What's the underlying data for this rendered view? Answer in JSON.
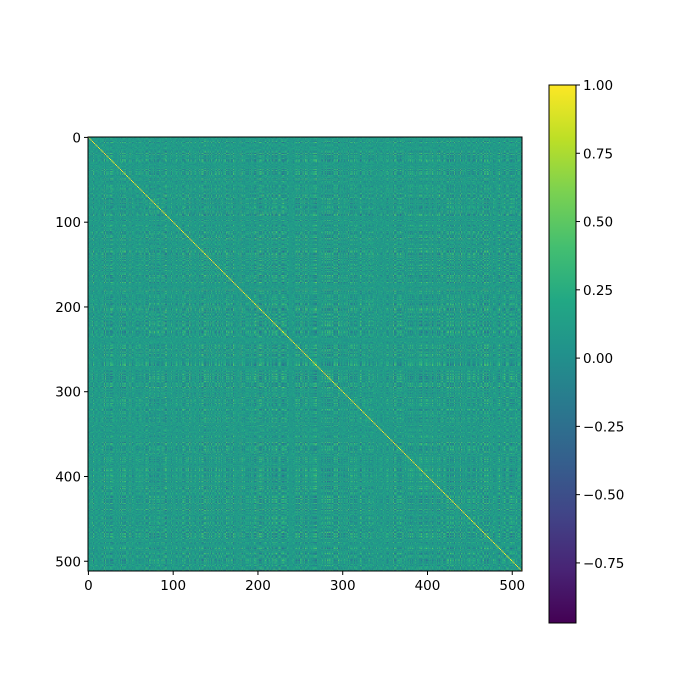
{
  "chart_data": {
    "type": "heatmap",
    "title": "",
    "xlabel": "",
    "ylabel": "",
    "matrix_size": [
      512,
      512
    ],
    "x_ticks": [
      0,
      100,
      200,
      300,
      400,
      500
    ],
    "y_ticks": [
      0,
      100,
      200,
      300,
      400,
      500
    ],
    "xlim": [
      0,
      512
    ],
    "ylim": [
      512,
      0
    ],
    "colormap": "viridis",
    "diagonal_value": 1.0,
    "typical_offdiagonal_range": [
      -0.5,
      0.6
    ],
    "colorbar": {
      "vmin": -0.97,
      "vmax": 1.0,
      "ticks": [
        1.0,
        0.75,
        0.5,
        0.25,
        0.0,
        -0.25,
        -0.5,
        -0.75
      ],
      "tick_labels": [
        "1.00",
        "0.75",
        "0.50",
        "0.25",
        "0.00",
        "−0.25",
        "−0.50",
        "−0.75"
      ]
    },
    "colors": {
      "viridis_low": "#440154",
      "viridis_mid": "#21918c",
      "viridis_high": "#fde725",
      "frame": "#000000",
      "background": "#ffffff"
    }
  }
}
